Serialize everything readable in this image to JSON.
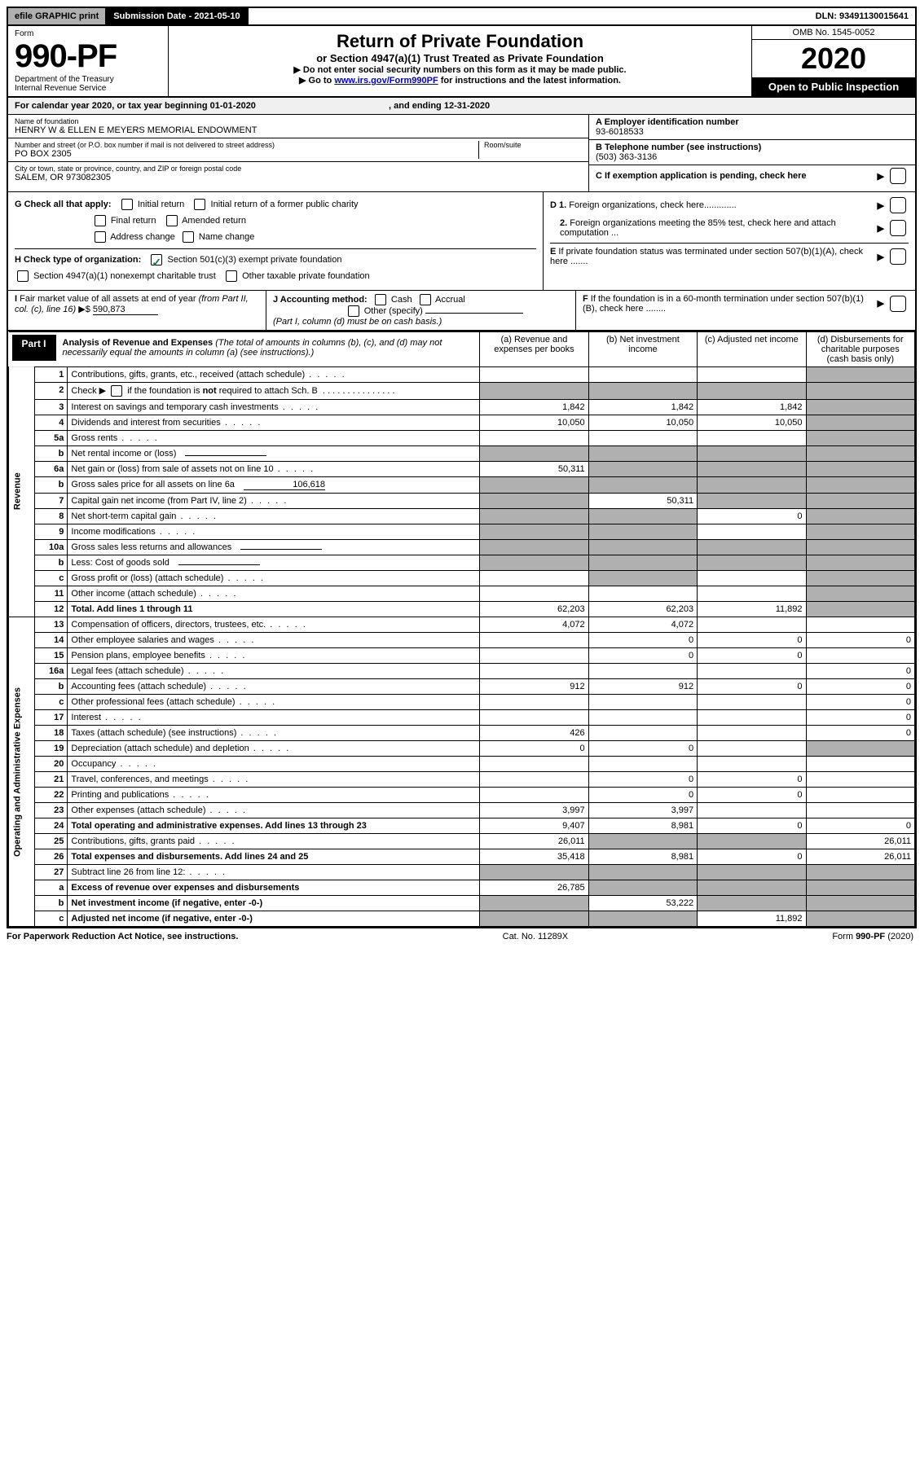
{
  "topbar": {
    "efile_label": "efile GRAPHIC print",
    "submission_label": "Submission Date - 2021-05-10",
    "dln_label": "DLN: 93491130015641"
  },
  "header": {
    "form_label": "Form",
    "form_number": "990-PF",
    "dept": "Department of the Treasury",
    "irs": "Internal Revenue Service",
    "title": "Return of Private Foundation",
    "subtitle": "or Section 4947(a)(1) Trust Treated as Private Foundation",
    "note1": "▶ Do not enter social security numbers on this form as it may be made public.",
    "note2_pre": "▶ Go to ",
    "note2_link": "www.irs.gov/Form990PF",
    "note2_post": " for instructions and the latest information.",
    "omb": "OMB No. 1545-0052",
    "year": "2020",
    "open_public": "Open to Public Inspection"
  },
  "calendar": {
    "text_pre": "For calendar year 2020, or tax year beginning ",
    "begin": "01-01-2020",
    "text_mid": " , and ending ",
    "end": "12-31-2020"
  },
  "info": {
    "name_label": "Name of foundation",
    "name": "HENRY W & ELLEN E MEYERS MEMORIAL ENDOWMENT",
    "addr_label": "Number and street (or P.O. box number if mail is not delivered to street address)",
    "addr": "PO BOX 2305",
    "room_label": "Room/suite",
    "city_label": "City or town, state or province, country, and ZIP or foreign postal code",
    "city": "SALEM, OR  973082305",
    "a_label": "A Employer identification number",
    "a_val": "93-6018533",
    "b_label": "B Telephone number (see instructions)",
    "b_val": "(503) 363-3136",
    "c_label": "C If exemption application is pending, check here",
    "d1_label": "D 1. Foreign organizations, check here.............",
    "d2_label": "2. Foreign organizations meeting the 85% test, check here and attach computation ...",
    "e_label": "E If private foundation status was terminated under section 507(b)(1)(A), check here .......",
    "f_label": "F  If the foundation is in a 60-month termination under section 507(b)(1)(B), check here ........"
  },
  "checks": {
    "g_label": "G Check all that apply:",
    "g_initial": "Initial return",
    "g_initial_former": "Initial return of a former public charity",
    "g_final": "Final return",
    "g_amended": "Amended return",
    "g_address": "Address change",
    "g_name": "Name change",
    "h_label": "H Check type of organization:",
    "h_501c3": "Section 501(c)(3) exempt private foundation",
    "h_4947": "Section 4947(a)(1) nonexempt charitable trust",
    "h_other": "Other taxable private foundation",
    "i_label": "I Fair market value of all assets at end of year (from Part II, col. (c), line 16) ▶$",
    "i_val": "590,873",
    "j_label": "J Accounting method:",
    "j_cash": "Cash",
    "j_accrual": "Accrual",
    "j_other": "Other (specify)",
    "j_note": "(Part I, column (d) must be on cash basis.)"
  },
  "part1": {
    "label": "Part I",
    "title": "Analysis of Revenue and Expenses",
    "note": " (The total of amounts in columns (b), (c), and (d) may not necessarily equal the amounts in column (a) (see instructions).)",
    "col_a": "(a) Revenue and expenses per books",
    "col_b": "(b) Net investment income",
    "col_c": "(c) Adjusted net income",
    "col_d": "(d) Disbursements for charitable purposes (cash basis only)"
  },
  "sections": {
    "revenue": "Revenue",
    "expenses": "Operating and Administrative Expenses"
  },
  "rows": [
    {
      "n": "1",
      "desc": "Contributions, gifts, grants, etc., received (attach schedule)",
      "a": "",
      "b": "",
      "c": "",
      "d": "shade"
    },
    {
      "n": "2",
      "desc": "Check ▶ ☐ if the foundation is not required to attach Sch. B",
      "a": "shade",
      "b": "shade",
      "c": "shade",
      "d": "shade",
      "html": true
    },
    {
      "n": "3",
      "desc": "Interest on savings and temporary cash investments",
      "a": "1,842",
      "b": "1,842",
      "c": "1,842",
      "d": "shade"
    },
    {
      "n": "4",
      "desc": "Dividends and interest from securities",
      "a": "10,050",
      "b": "10,050",
      "c": "10,050",
      "d": "shade"
    },
    {
      "n": "5a",
      "desc": "Gross rents",
      "a": "",
      "b": "",
      "c": "",
      "d": "shade"
    },
    {
      "n": "b",
      "desc": "Net rental income or (loss)",
      "a": "shade",
      "b": "shade",
      "c": "shade",
      "d": "shade",
      "inline": true
    },
    {
      "n": "6a",
      "desc": "Net gain or (loss) from sale of assets not on line 10",
      "a": "50,311",
      "b": "shade",
      "c": "shade",
      "d": "shade"
    },
    {
      "n": "b",
      "desc": "Gross sales price for all assets on line 6a",
      "inline_val": "106,618",
      "a": "shade",
      "b": "shade",
      "c": "shade",
      "d": "shade"
    },
    {
      "n": "7",
      "desc": "Capital gain net income (from Part IV, line 2)",
      "a": "shade",
      "b": "50,311",
      "c": "shade",
      "d": "shade"
    },
    {
      "n": "8",
      "desc": "Net short-term capital gain",
      "a": "shade",
      "b": "shade",
      "c": "0",
      "d": "shade"
    },
    {
      "n": "9",
      "desc": "Income modifications",
      "a": "shade",
      "b": "shade",
      "c": "",
      "d": "shade"
    },
    {
      "n": "10a",
      "desc": "Gross sales less returns and allowances",
      "a": "shade",
      "b": "shade",
      "c": "shade",
      "d": "shade",
      "inline": true
    },
    {
      "n": "b",
      "desc": "Less: Cost of goods sold",
      "a": "shade",
      "b": "shade",
      "c": "shade",
      "d": "shade",
      "inline": true
    },
    {
      "n": "c",
      "desc": "Gross profit or (loss) (attach schedule)",
      "a": "",
      "b": "shade",
      "c": "",
      "d": "shade"
    },
    {
      "n": "11",
      "desc": "Other income (attach schedule)",
      "a": "",
      "b": "",
      "c": "",
      "d": "shade"
    },
    {
      "n": "12",
      "desc": "Total. Add lines 1 through 11",
      "a": "62,203",
      "b": "62,203",
      "c": "11,892",
      "d": "shade",
      "bold": true
    }
  ],
  "exp_rows": [
    {
      "n": "13",
      "desc": "Compensation of officers, directors, trustees, etc.",
      "a": "4,072",
      "b": "4,072",
      "c": "",
      "d": ""
    },
    {
      "n": "14",
      "desc": "Other employee salaries and wages",
      "a": "",
      "b": "0",
      "c": "0",
      "d": "0"
    },
    {
      "n": "15",
      "desc": "Pension plans, employee benefits",
      "a": "",
      "b": "0",
      "c": "0",
      "d": ""
    },
    {
      "n": "16a",
      "desc": "Legal fees (attach schedule)",
      "a": "",
      "b": "",
      "c": "",
      "d": "0"
    },
    {
      "n": "b",
      "desc": "Accounting fees (attach schedule)",
      "a": "912",
      "b": "912",
      "c": "0",
      "d": "0"
    },
    {
      "n": "c",
      "desc": "Other professional fees (attach schedule)",
      "a": "",
      "b": "",
      "c": "",
      "d": "0"
    },
    {
      "n": "17",
      "desc": "Interest",
      "a": "",
      "b": "",
      "c": "",
      "d": "0"
    },
    {
      "n": "18",
      "desc": "Taxes (attach schedule) (see instructions)",
      "a": "426",
      "b": "",
      "c": "",
      "d": "0"
    },
    {
      "n": "19",
      "desc": "Depreciation (attach schedule) and depletion",
      "a": "0",
      "b": "0",
      "c": "",
      "d": "shade"
    },
    {
      "n": "20",
      "desc": "Occupancy",
      "a": "",
      "b": "",
      "c": "",
      "d": ""
    },
    {
      "n": "21",
      "desc": "Travel, conferences, and meetings",
      "a": "",
      "b": "0",
      "c": "0",
      "d": ""
    },
    {
      "n": "22",
      "desc": "Printing and publications",
      "a": "",
      "b": "0",
      "c": "0",
      "d": ""
    },
    {
      "n": "23",
      "desc": "Other expenses (attach schedule)",
      "a": "3,997",
      "b": "3,997",
      "c": "",
      "d": ""
    },
    {
      "n": "24",
      "desc": "Total operating and administrative expenses. Add lines 13 through 23",
      "a": "9,407",
      "b": "8,981",
      "c": "0",
      "d": "0",
      "bold": true
    },
    {
      "n": "25",
      "desc": "Contributions, gifts, grants paid",
      "a": "26,011",
      "b": "shade",
      "c": "shade",
      "d": "26,011"
    },
    {
      "n": "26",
      "desc": "Total expenses and disbursements. Add lines 24 and 25",
      "a": "35,418",
      "b": "8,981",
      "c": "0",
      "d": "26,011",
      "bold": true
    },
    {
      "n": "27",
      "desc": "Subtract line 26 from line 12:",
      "a": "shade",
      "b": "shade",
      "c": "shade",
      "d": "shade"
    },
    {
      "n": "a",
      "desc": "Excess of revenue over expenses and disbursements",
      "a": "26,785",
      "b": "shade",
      "c": "shade",
      "d": "shade",
      "bold": true
    },
    {
      "n": "b",
      "desc": "Net investment income (if negative, enter -0-)",
      "a": "shade",
      "b": "53,222",
      "c": "shade",
      "d": "shade",
      "bold": true
    },
    {
      "n": "c",
      "desc": "Adjusted net income (if negative, enter -0-)",
      "a": "shade",
      "b": "shade",
      "c": "11,892",
      "d": "shade",
      "bold": true
    }
  ],
  "footer": {
    "left": "For Paperwork Reduction Act Notice, see instructions.",
    "mid": "Cat. No. 11289X",
    "right": "Form 990-PF (2020)"
  }
}
